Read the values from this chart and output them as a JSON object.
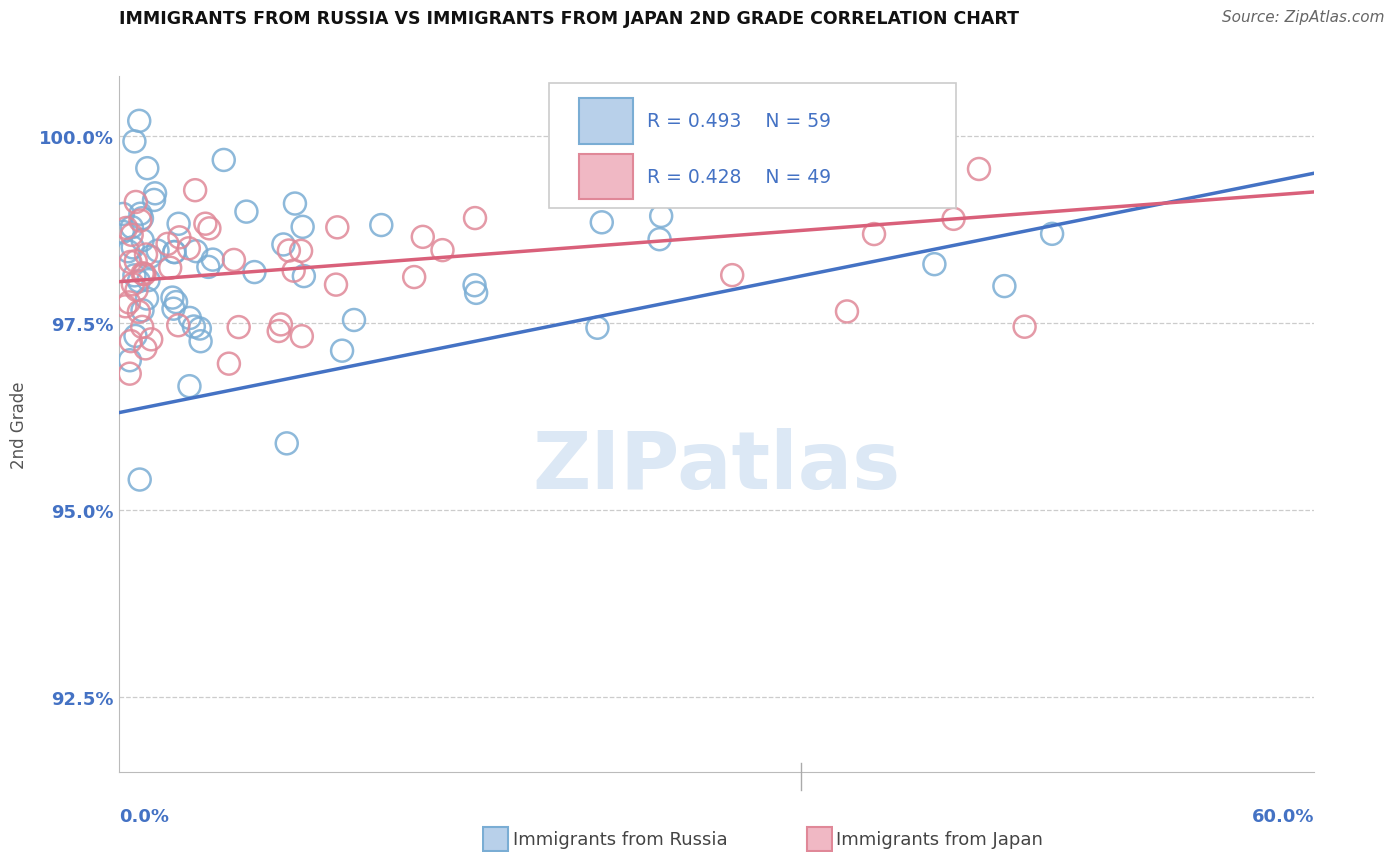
{
  "title": "IMMIGRANTS FROM RUSSIA VS IMMIGRANTS FROM JAPAN 2ND GRADE CORRELATION CHART",
  "source": "Source: ZipAtlas.com",
  "x_left_label": "0.0%",
  "x_right_label": "60.0%",
  "ylabel": "2nd Grade",
  "ytick_values": [
    92.5,
    95.0,
    97.5,
    100.0
  ],
  "ytick_labels": [
    "92.5%",
    "95.0%",
    "97.5%",
    "100.0%"
  ],
  "legend_russia": "Immigrants from Russia",
  "legend_japan": "Immigrants from Japan",
  "R_russia": 0.493,
  "N_russia": 59,
  "R_japan": 0.428,
  "N_japan": 49,
  "russia_dot_edge": "#7aadd4",
  "japan_dot_edge": "#e08898",
  "russia_dot_fill": "#b8d0ea",
  "japan_dot_fill": "#f0b8c4",
  "russia_line_color": "#4472c4",
  "japan_line_color": "#d9607a",
  "axis_value_color": "#4472c4",
  "text_color": "#111111",
  "source_color": "#666666",
  "grid_color": "#cccccc",
  "watermark_color": "#dce8f5",
  "xlim": [
    0,
    62
  ],
  "ylim": [
    91.5,
    100.8
  ],
  "russia_trendline_x": [
    0,
    62
  ],
  "russia_trendline_y": [
    96.3,
    99.5
  ],
  "japan_trendline_x": [
    0,
    62
  ],
  "japan_trendline_y": [
    98.05,
    99.25
  ]
}
